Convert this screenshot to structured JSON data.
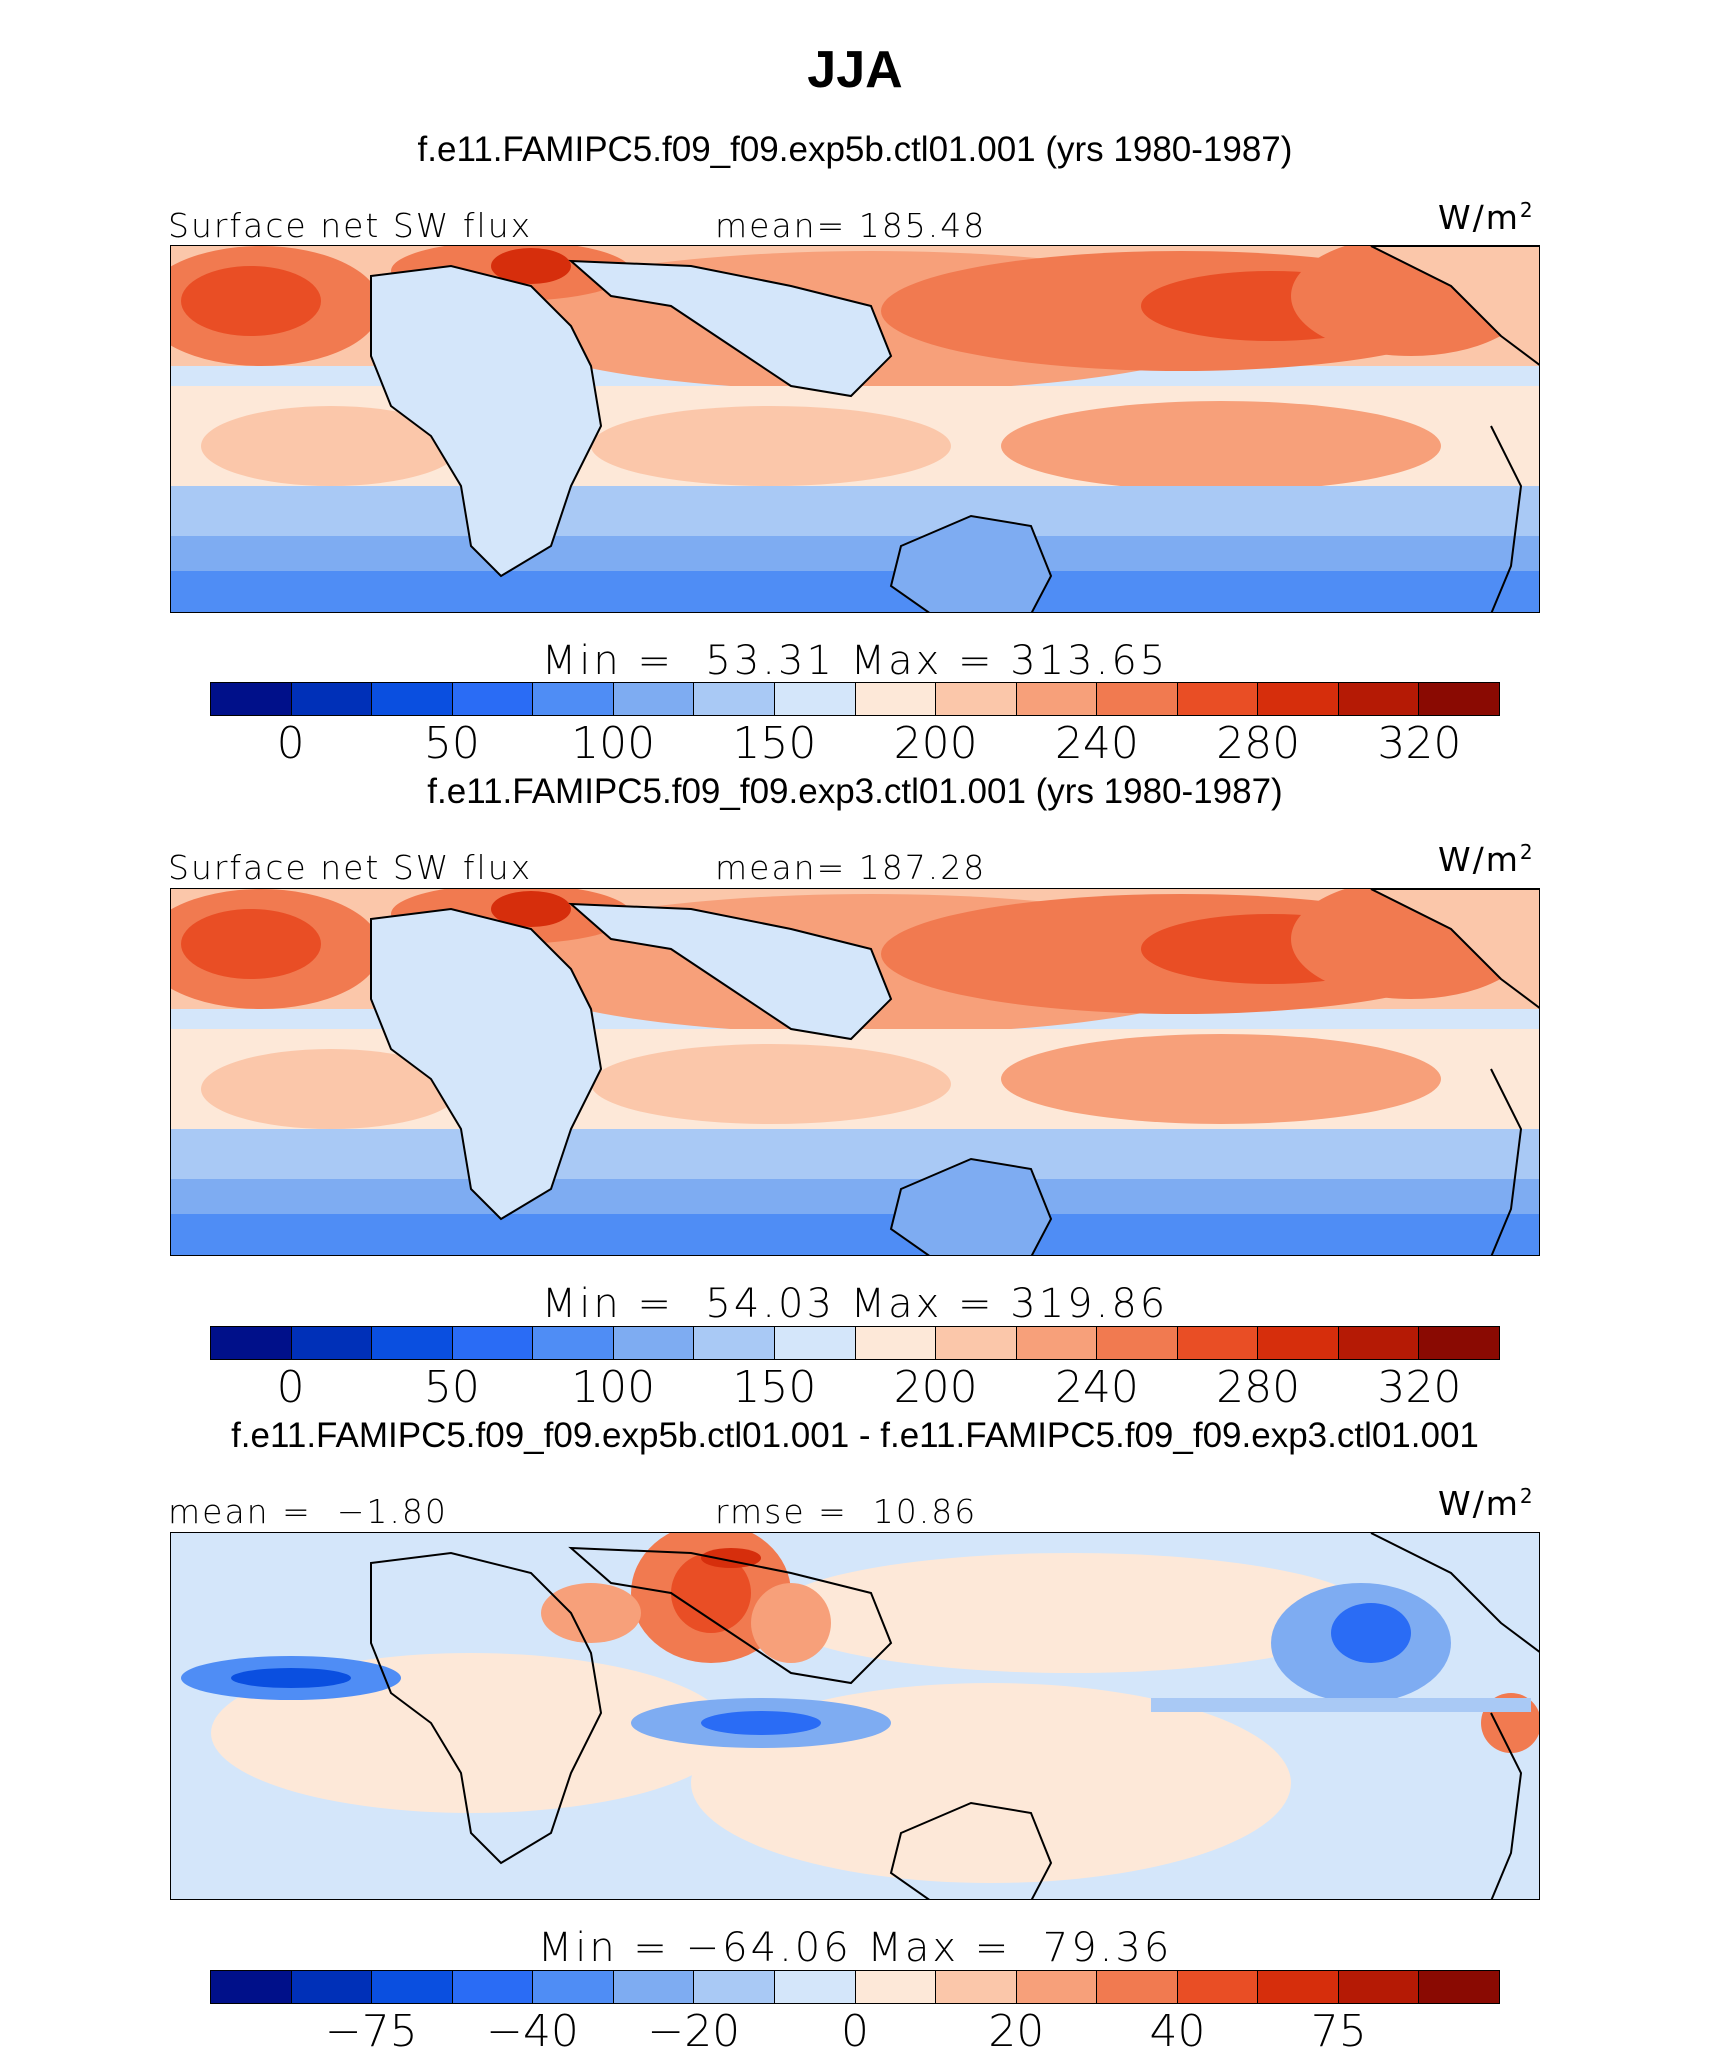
{
  "figure": {
    "title": "JJA"
  },
  "colorbar_colors": {
    "absolute": [
      "#00108a",
      "#0030b8",
      "#0a4fe0",
      "#2a6cf5",
      "#4f8df5",
      "#7eacf2",
      "#a9c9f5",
      "#d4e6fa",
      "#fde8d8",
      "#fbc7aa",
      "#f7a07a",
      "#f17a50",
      "#e94e25",
      "#d62e0c",
      "#b51a05",
      "#8a0a02"
    ],
    "difference": [
      "#00108a",
      "#0030b8",
      "#0a4fe0",
      "#2a6cf5",
      "#4f8df5",
      "#7eacf2",
      "#a9c9f5",
      "#d4e6fa",
      "#fde8d8",
      "#fbc7aa",
      "#f7a07a",
      "#f17a50",
      "#e94e25",
      "#d62e0c",
      "#b51a05",
      "#8a0a02"
    ]
  },
  "panels": [
    {
      "case_title": "f.e11.FAMIPC5.f09_f09.exp5b.ctl01.001 (yrs 1980-1987)",
      "left_label": "Surface net SW flux",
      "center_label": "mean= 185.48",
      "units": "W/m",
      "units_sup": "2",
      "minmax": "Min =  53.31 Max = 313.65",
      "ticks": [
        "0",
        "50",
        "100",
        "150",
        "200",
        "240",
        "280",
        "320"
      ],
      "map_kind": "absolute"
    },
    {
      "case_title": "f.e11.FAMIPC5.f09_f09.exp3.ctl01.001 (yrs 1980-1987)",
      "left_label": "Surface net SW flux",
      "center_label": "mean= 187.28",
      "units": "W/m",
      "units_sup": "2",
      "minmax": "Min =  54.03 Max = 319.86",
      "ticks": [
        "0",
        "50",
        "100",
        "150",
        "200",
        "240",
        "280",
        "320"
      ],
      "map_kind": "absolute"
    },
    {
      "case_title": "f.e11.FAMIPC5.f09_f09.exp5b.ctl01.001 - f.e11.FAMIPC5.f09_f09.exp3.ctl01.001",
      "left_label": "mean =  −1.80",
      "center_label": "rmse =  10.86",
      "units": "W/m",
      "units_sup": "2",
      "minmax": "Min = −64.06 Max =  79.36",
      "ticks": [
        "−75",
        "−40",
        "−20",
        "0",
        "20",
        "40",
        "75"
      ],
      "map_kind": "difference"
    }
  ]
}
